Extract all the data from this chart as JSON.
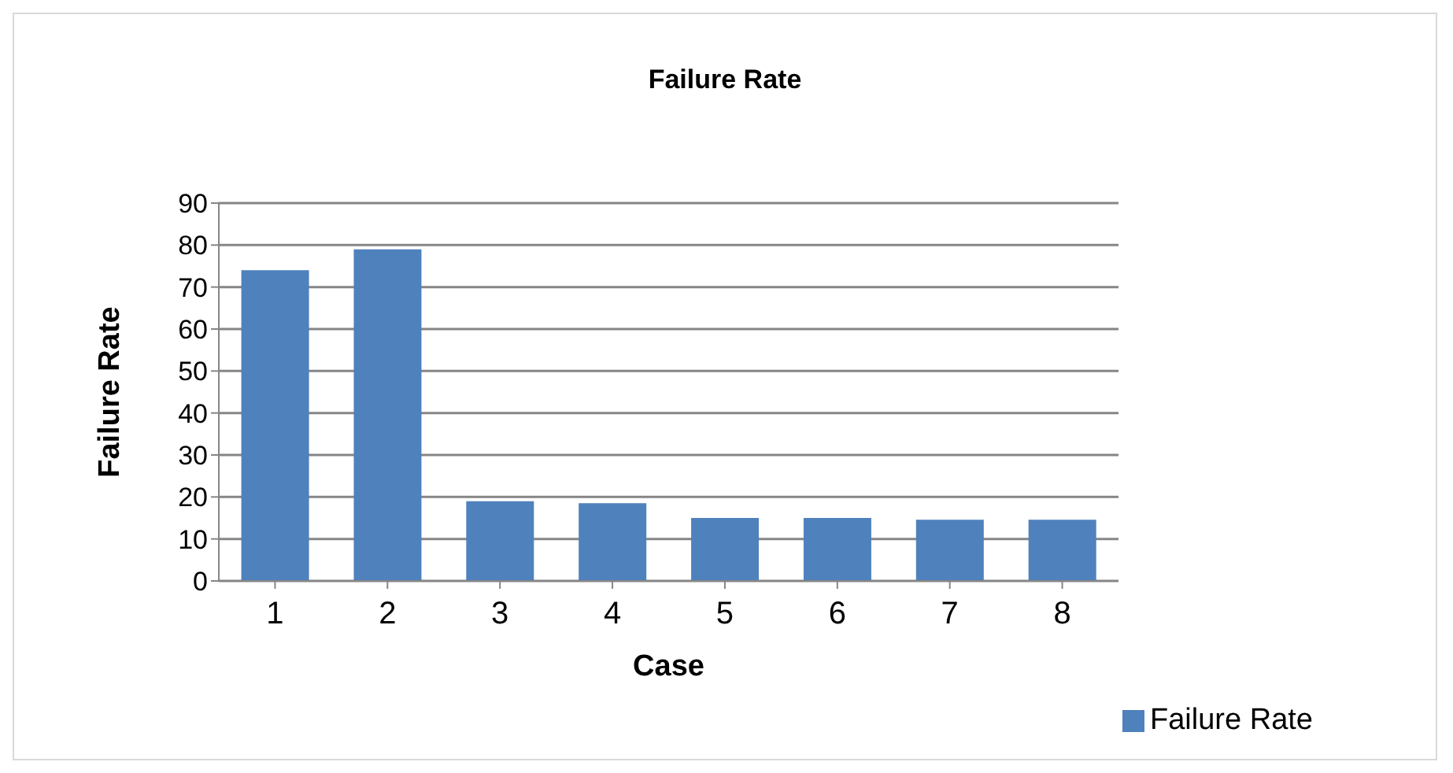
{
  "chart_data": {
    "type": "bar",
    "title": "Failure Rate",
    "xlabel": "Case",
    "ylabel": "Failure Rate",
    "categories": [
      "1",
      "2",
      "3",
      "4",
      "5",
      "6",
      "7",
      "8"
    ],
    "series": [
      {
        "name": "Failure Rate",
        "color": "#4f81bd",
        "values": [
          74,
          79,
          19,
          18.5,
          15,
          15,
          14.6,
          14.6
        ]
      }
    ],
    "ylim": [
      0,
      90
    ],
    "yticks": [
      0,
      10,
      20,
      30,
      40,
      50,
      60,
      70,
      80,
      90
    ],
    "grid": "y",
    "legend": "bottom right"
  }
}
